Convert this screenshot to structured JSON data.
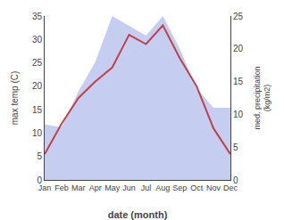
{
  "chart_data": {
    "type": "line",
    "xlabel": "date (month)",
    "ylabel": "max temp (C)",
    "y2label": "med. precipitation\n(kg/m2)",
    "categories": [
      "Jan",
      "Feb",
      "Mar",
      "Apr",
      "May",
      "Jun",
      "Jul",
      "Aug",
      "Sep",
      "Oct",
      "Nov",
      "Dec"
    ],
    "series": [
      {
        "type": "area",
        "axis": "y2",
        "color": "#c5cdf0",
        "values": [
          8.5,
          8.0,
          13.5,
          18.0,
          25.0,
          23.5,
          22.0,
          25.0,
          20.0,
          14.0,
          11.0,
          11.0
        ]
      },
      {
        "type": "line",
        "color": "#c0424a",
        "values": [
          5.5,
          12.0,
          17.5,
          21.0,
          24.0,
          31.0,
          29.0,
          33.0,
          26.0,
          20.0,
          11.0,
          5.5
        ]
      }
    ],
    "ylim": [
      0,
      35
    ],
    "yticks": [
      0,
      5,
      10,
      15,
      20,
      25,
      30,
      35
    ],
    "y2lim": [
      0,
      25
    ],
    "y2ticks": [
      0,
      5,
      10,
      15,
      20,
      25
    ],
    "grid": false
  }
}
